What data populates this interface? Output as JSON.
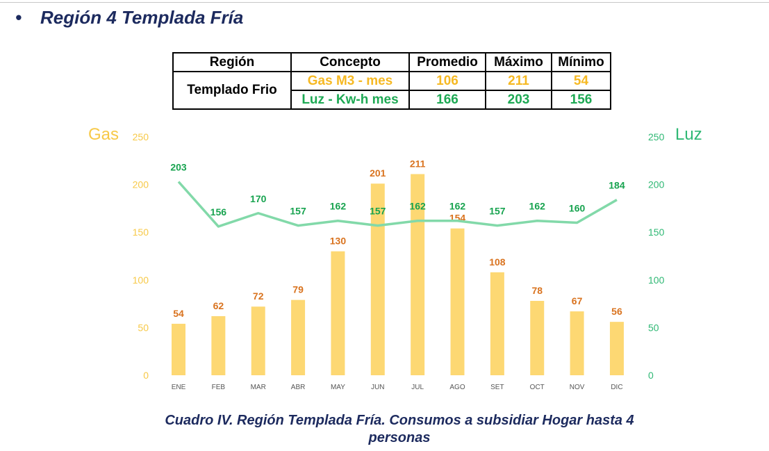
{
  "heading": {
    "bullet": "•",
    "title": "Región 4 Templada Fría"
  },
  "table": {
    "headers": [
      "Región",
      "Concepto",
      "Promedio",
      "Máximo",
      "Mínimo"
    ],
    "region": "Templado Frio",
    "rows": [
      {
        "concepto": "Gas M3 - mes",
        "promedio": "106",
        "maximo": "211",
        "minimo": "54"
      },
      {
        "concepto": "Luz - Kw-h mes",
        "promedio": "166",
        "maximo": "203",
        "minimo": "156"
      }
    ]
  },
  "chart_data": {
    "type": "bar",
    "categories": [
      "ENE",
      "FEB",
      "MAR",
      "ABR",
      "MAY",
      "JUN",
      "JUL",
      "AGO",
      "SET",
      "OCT",
      "NOV",
      "DIC"
    ],
    "series": [
      {
        "name": "Gas",
        "type": "bar",
        "axis": "left",
        "values": [
          54,
          62,
          72,
          79,
          130,
          201,
          211,
          154,
          108,
          78,
          67,
          56
        ],
        "color": "#fdd873",
        "label_color": "#d9731f"
      },
      {
        "name": "Luz",
        "type": "line",
        "axis": "right",
        "values": [
          203,
          156,
          170,
          157,
          162,
          157,
          162,
          162,
          157,
          162,
          160,
          184
        ],
        "color": "#82d9a9",
        "label_color": "#17a34f"
      }
    ],
    "ylabel_left": "Gas",
    "ylabel_right": "Luz",
    "ylim": [
      0,
      250
    ],
    "yticks": [
      0,
      50,
      100,
      150,
      200,
      250
    ],
    "left_axis_color": "#f7c948",
    "right_axis_color": "#2fb874"
  },
  "caption": {
    "line1": "Cuadro IV.  Región Templada Fría.  Consumos a subsidiar Hogar hasta 4",
    "line2": "personas"
  }
}
